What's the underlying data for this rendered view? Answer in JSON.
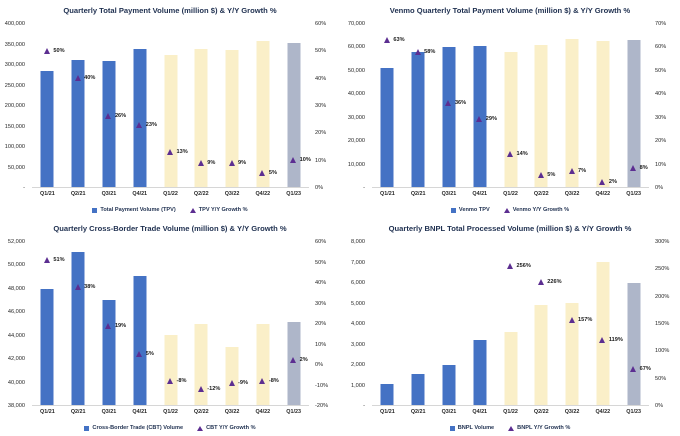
{
  "page": {
    "background": "#FFFFFF"
  },
  "colors": {
    "bar_blue": "#4472C4",
    "bar_cream": "#FAEFC8",
    "bar_gray": "#AEB6C9",
    "marker_purple": "#5C2E91",
    "title_navy": "#1F3050",
    "axis_text": "#262626",
    "baseline": "#D6D6D6"
  },
  "chart_data": [
    {
      "type": "bar",
      "title": "Quarterly Total Payment Volume (million $) & Y/Y Growth %",
      "categories": [
        "Q1/21",
        "Q2/21",
        "Q3/21",
        "Q4/21",
        "Q1/22",
        "Q2/22",
        "Q3/22",
        "Q4/22",
        "Q1/23"
      ],
      "series": [
        {
          "name": "Total Payment Volume (TPV)",
          "kind": "bar",
          "values": [
            285000,
            311000,
            310000,
            339500,
            323000,
            339800,
            337000,
            357400,
            354500
          ]
        },
        {
          "name": "TPV Y/Y Growth %",
          "kind": "marker",
          "values": [
            50,
            40,
            26,
            23,
            13,
            9,
            9,
            5,
            10
          ],
          "labels": [
            "50%",
            "40%",
            "26%",
            "23%",
            "13%",
            "9%",
            "9%",
            "5%",
            "10%"
          ]
        }
      ],
      "bar_colors": [
        "#4472C4",
        "#4472C4",
        "#4472C4",
        "#4472C4",
        "#FAEFC8",
        "#FAEFC8",
        "#FAEFC8",
        "#FAEFC8",
        "#AEB6C9"
      ],
      "left_axis": {
        "min": 0,
        "max": 400000,
        "tick_labels": [
          "400,000",
          "350,000",
          "300,000",
          "250,000",
          "200,000",
          "150,000",
          "100,000",
          "50,000",
          "-"
        ]
      },
      "right_axis": {
        "min": 0,
        "max": 60,
        "tick_labels": [
          "60%",
          "50%",
          "40%",
          "30%",
          "20%",
          "10%",
          "0%"
        ]
      },
      "legend": [
        {
          "swatch": "square",
          "label": "Total Payment Volume (TPV)"
        },
        {
          "swatch": "triangle",
          "label": "TPV Y/Y Growth %"
        }
      ],
      "grid": false,
      "legend_position": "bottom"
    },
    {
      "type": "bar",
      "title": "Venmo Quarterly Total Payment Volume (million $) & Y/Y Growth %",
      "categories": [
        "Q1/21",
        "Q2/21",
        "Q3/21",
        "Q4/21",
        "Q1/22",
        "Q2/22",
        "Q3/22",
        "Q4/22",
        "Q1/23"
      ],
      "series": [
        {
          "name": "Venmo TPV",
          "kind": "bar",
          "values": [
            51000,
            58000,
            60000,
            60600,
            57800,
            61000,
            63600,
            62500,
            63000
          ]
        },
        {
          "name": "Venmo Y/Y Growth %",
          "kind": "marker",
          "values": [
            63,
            58,
            36,
            29,
            14,
            5,
            7,
            2,
            8
          ],
          "labels": [
            "63%",
            "58%",
            "36%",
            "29%",
            "14%",
            "5%",
            "7%",
            "2%",
            "8%"
          ]
        }
      ],
      "bar_colors": [
        "#4472C4",
        "#4472C4",
        "#4472C4",
        "#4472C4",
        "#FAEFC8",
        "#FAEFC8",
        "#FAEFC8",
        "#FAEFC8",
        "#AEB6C9"
      ],
      "left_axis": {
        "min": 0,
        "max": 70000,
        "tick_labels": [
          "70,000",
          "60,000",
          "50,000",
          "40,000",
          "30,000",
          "20,000",
          "10,000",
          "-"
        ]
      },
      "right_axis": {
        "min": 0,
        "max": 70,
        "tick_labels": [
          "70%",
          "60%",
          "50%",
          "40%",
          "30%",
          "20%",
          "10%",
          "0%"
        ]
      },
      "legend": [
        {
          "swatch": "square",
          "label": "Venmo TPV"
        },
        {
          "swatch": "triangle",
          "label": "Venmo Y/Y Growth %"
        }
      ],
      "grid": false,
      "legend_position": "bottom"
    },
    {
      "type": "bar",
      "title": "Quarterly Cross-Border Trade Volume (million $) & Y/Y Growth %",
      "categories": [
        "Q1/21",
        "Q2/21",
        "Q3/21",
        "Q4/21",
        "Q1/22",
        "Q2/22",
        "Q3/22",
        "Q4/22",
        "Q1/23"
      ],
      "series": [
        {
          "name": "Cross-Border Trade (CBT) Volume",
          "kind": "bar",
          "values": [
            48000,
            51100,
            47000,
            49100,
            44000,
            45000,
            43000,
            45000,
            45100
          ]
        },
        {
          "name": "CBT Y/Y Growth %",
          "kind": "marker",
          "values": [
            51,
            38,
            19,
            5,
            -8,
            -12,
            -9,
            -8,
            2
          ],
          "labels": [
            "51%",
            "38%",
            "19%",
            "5%",
            "-8%",
            "-12%",
            "-9%",
            "-8%",
            "2%"
          ]
        }
      ],
      "bar_colors": [
        "#4472C4",
        "#4472C4",
        "#4472C4",
        "#4472C4",
        "#FAEFC8",
        "#FAEFC8",
        "#FAEFC8",
        "#FAEFC8",
        "#AEB6C9"
      ],
      "left_axis": {
        "min": 38000,
        "max": 52000,
        "tick_labels": [
          "52,000",
          "50,000",
          "48,000",
          "46,000",
          "44,000",
          "42,000",
          "40,000",
          "38,000"
        ]
      },
      "right_axis": {
        "min": -20,
        "max": 60,
        "tick_labels": [
          "60%",
          "50%",
          "40%",
          "30%",
          "20%",
          "10%",
          "0%",
          "-10%",
          "-20%"
        ]
      },
      "legend": [
        {
          "swatch": "square",
          "label": "Cross-Border Trade (CBT) Volume"
        },
        {
          "swatch": "triangle",
          "label": "CBT Y/Y Growth %"
        }
      ],
      "grid": false,
      "legend_position": "bottom"
    },
    {
      "type": "bar",
      "title": "Quarterly BNPL Total Processed Volume (million $) & Y/Y Growth %",
      "categories": [
        "Q1/21",
        "Q2/21",
        "Q3/21",
        "Q4/21",
        "Q1/22",
        "Q2/22",
        "Q3/22",
        "Q4/22",
        "Q1/23"
      ],
      "series": [
        {
          "name": "BNPL Volume",
          "kind": "bar",
          "values": [
            1010,
            1500,
            1950,
            3200,
            3600,
            4900,
            5000,
            7000,
            6000
          ]
        },
        {
          "name": "BNPL Y/Y Growth %",
          "kind": "marker",
          "values": [
            null,
            null,
            null,
            null,
            256,
            226,
            157,
            119,
            67
          ],
          "labels": [
            null,
            null,
            null,
            null,
            "256%",
            "226%",
            "157%",
            "119%",
            "67%"
          ]
        }
      ],
      "bar_colors": [
        "#4472C4",
        "#4472C4",
        "#4472C4",
        "#4472C4",
        "#FAEFC8",
        "#FAEFC8",
        "#FAEFC8",
        "#FAEFC8",
        "#AEB6C9"
      ],
      "left_axis": {
        "min": 0,
        "max": 8000,
        "tick_labels": [
          "8,000",
          "7,000",
          "6,000",
          "5,000",
          "4,000",
          "3,000",
          "2,000",
          "1,000",
          "-"
        ]
      },
      "right_axis": {
        "min": 0,
        "max": 300,
        "tick_labels": [
          "300%",
          "250%",
          "200%",
          "150%",
          "100%",
          "50%",
          "0%"
        ]
      },
      "legend": [
        {
          "swatch": "square",
          "label": "BNPL Volume"
        },
        {
          "swatch": "triangle",
          "label": "BNPL Y/Y Growth %"
        }
      ],
      "grid": false,
      "legend_position": "bottom"
    }
  ]
}
